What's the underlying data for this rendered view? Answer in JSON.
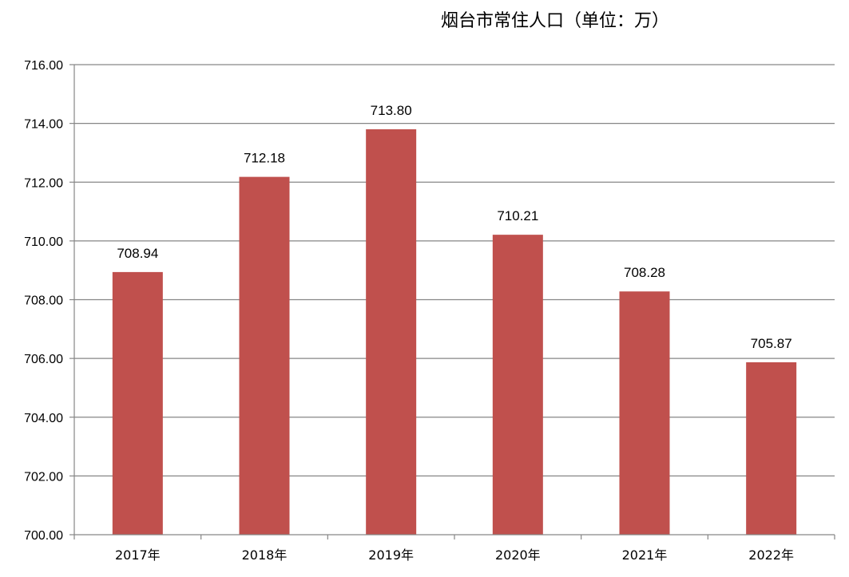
{
  "chart_data": {
    "type": "bar",
    "title": "烟台市常住人口（单位：万）",
    "categories": [
      "2017年",
      "2018年",
      "2019年",
      "2020年",
      "2021年",
      "2022年"
    ],
    "series": [
      {
        "values": [
          708.94,
          712.18,
          713.8,
          710.21,
          708.28,
          705.87
        ]
      }
    ],
    "data_labels": [
      "708.94",
      "712.18",
      "713.80",
      "710.21",
      "708.28",
      "705.87"
    ],
    "ylim": [
      700,
      716
    ],
    "yticks": [
      "700.00",
      "702.00",
      "704.00",
      "706.00",
      "708.00",
      "710.00",
      "712.00",
      "714.00",
      "716.00"
    ],
    "xlabel": "",
    "ylabel": "",
    "grid": true,
    "legend": "none",
    "colors": {
      "bar": "#c0504d",
      "grid": "#868686",
      "axis": "#868686"
    }
  }
}
